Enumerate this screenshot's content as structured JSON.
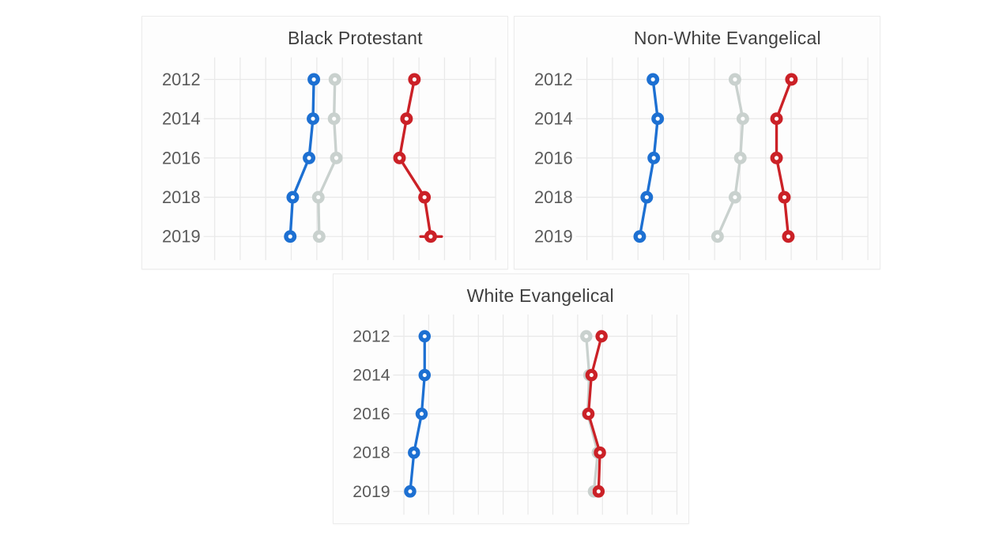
{
  "page": {
    "background": "#ffffff",
    "description": "Three small-multiple dot-plot trend charts on white panels"
  },
  "colors": {
    "blue": "#1d70d2",
    "gray": "#c9d1ce",
    "red": "#cb2127",
    "grid": "#e9e9e9",
    "title_text": "#3f3f3f",
    "axis_text": "#5a5a5a",
    "panel_bg": "#fdfdfd",
    "panel_border": "#ececec",
    "marker_hole": "#ffffff"
  },
  "chart_data": [
    {
      "type": "line",
      "variant": "horizontal-dotplot",
      "title": "Black Protestant",
      "categories": [
        "2012",
        "2014",
        "2016",
        "2018",
        "2019"
      ],
      "axes": {
        "y_tick_labels": [
          "2012",
          "2014",
          "2016",
          "2018",
          "2019"
        ],
        "x_tick_labels_visible": false,
        "x_value_note": "x positions estimated as percent of plot width (no axis labels shown)",
        "x_range_pct": [
          0,
          100
        ],
        "vertical_gridlines": 12,
        "grid": true,
        "legend": "none"
      },
      "series": [
        {
          "name": "blue-series",
          "color_key": "blue",
          "x_pct": [
            35.3,
            35.0,
            33.6,
            27.8,
            26.9
          ]
        },
        {
          "name": "gray-series",
          "color_key": "gray",
          "x_pct": [
            42.8,
            42.5,
            43.3,
            36.9,
            37.2
          ]
        },
        {
          "name": "red-series",
          "color_key": "red",
          "x_pct": [
            71.1,
            68.3,
            65.8,
            74.7,
            76.9
          ]
        }
      ],
      "extra_segments": [
        {
          "series": "red-series",
          "color_key": "red",
          "row_index": 4,
          "x1_pct": 73.3,
          "x2_pct": 80.8
        }
      ]
    },
    {
      "type": "line",
      "variant": "horizontal-dotplot",
      "title": "Non-White Evangelical",
      "categories": [
        "2012",
        "2014",
        "2016",
        "2018",
        "2019"
      ],
      "axes": {
        "y_tick_labels": [
          "2012",
          "2014",
          "2016",
          "2018",
          "2019"
        ],
        "x_tick_labels_visible": false,
        "x_value_note": "x positions estimated as percent of plot width (no axis labels shown)",
        "x_range_pct": [
          0,
          100
        ],
        "vertical_gridlines": 12,
        "grid": true,
        "legend": "none"
      },
      "series": [
        {
          "name": "blue-series",
          "color_key": "blue",
          "x_pct": [
            23.5,
            25.2,
            23.8,
            21.3,
            18.8
          ]
        },
        {
          "name": "gray-series",
          "color_key": "gray",
          "x_pct": [
            52.7,
            55.5,
            54.6,
            52.7,
            46.5
          ]
        },
        {
          "name": "red-series",
          "color_key": "red",
          "x_pct": [
            72.8,
            67.5,
            67.5,
            70.3,
            71.7
          ]
        }
      ],
      "extra_segments": []
    },
    {
      "type": "line",
      "variant": "horizontal-dotplot",
      "title": "White Evangelical",
      "categories": [
        "2012",
        "2014",
        "2016",
        "2018",
        "2019"
      ],
      "axes": {
        "y_tick_labels": [
          "2012",
          "2014",
          "2016",
          "2018",
          "2019"
        ],
        "x_tick_labels_visible": false,
        "x_value_note": "x positions estimated as percent of plot width (no axis labels shown)",
        "x_range_pct": [
          0,
          100
        ],
        "vertical_gridlines": 12,
        "grid": true,
        "legend": "none"
      },
      "series": [
        {
          "name": "blue-series",
          "color_key": "blue",
          "x_pct": [
            7.6,
            7.6,
            6.5,
            3.7,
            2.3
          ]
        },
        {
          "name": "gray-series",
          "color_key": "gray",
          "x_pct": [
            66.8,
            67.9,
            67.3,
            71.0,
            69.6
          ]
        },
        {
          "name": "red-series",
          "color_key": "red",
          "x_pct": [
            72.4,
            68.7,
            67.6,
            71.8,
            71.3
          ]
        }
      ],
      "extra_segments": []
    }
  ]
}
